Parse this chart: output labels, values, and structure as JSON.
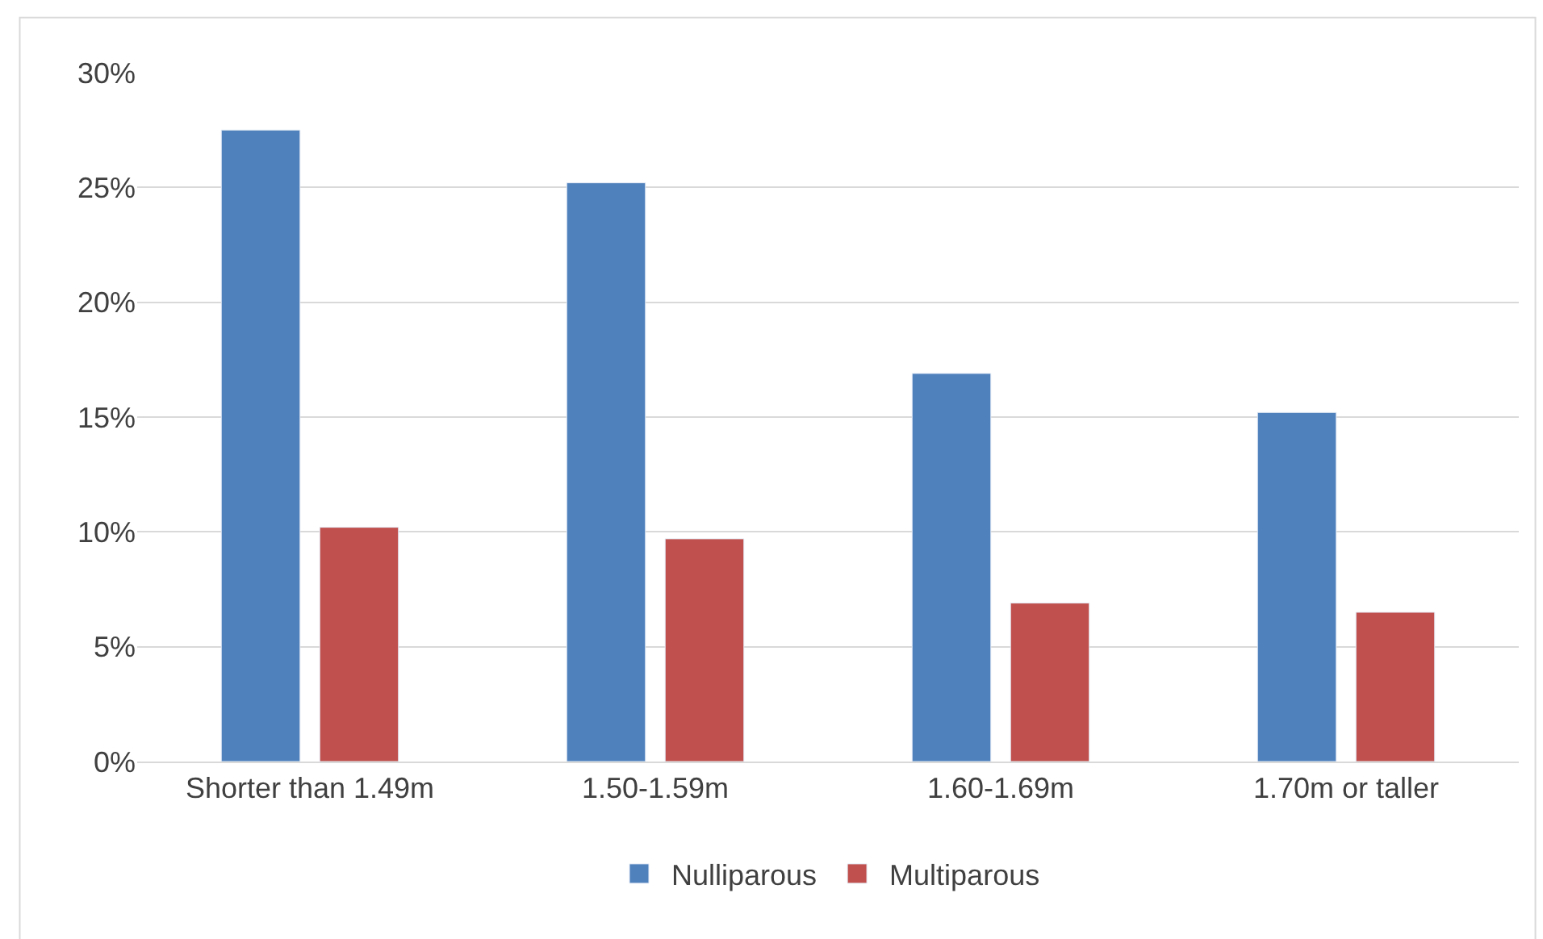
{
  "chart_data": {
    "type": "bar",
    "categories": [
      "Shorter than 1.49m",
      "1.50-1.59m",
      "1.60-1.69m",
      "1.70m or taller"
    ],
    "series": [
      {
        "name": "Nulliparous",
        "color": "#4f81bd",
        "values": [
          27.5,
          25.2,
          16.9,
          15.2
        ]
      },
      {
        "name": "Multiparous",
        "color": "#c0504d",
        "values": [
          10.2,
          9.7,
          6.9,
          6.5
        ]
      }
    ],
    "ylim": [
      0,
      30
    ],
    "yticks": [
      {
        "value": 0,
        "label": "0%"
      },
      {
        "value": 5,
        "label": "5%"
      },
      {
        "value": 10,
        "label": "10%"
      },
      {
        "value": 15,
        "label": "15%"
      },
      {
        "value": 20,
        "label": "20%"
      },
      {
        "value": 25,
        "label": "25%"
      },
      {
        "value": 30,
        "label": "30%"
      }
    ],
    "grid": "y",
    "legend": "bottom"
  }
}
